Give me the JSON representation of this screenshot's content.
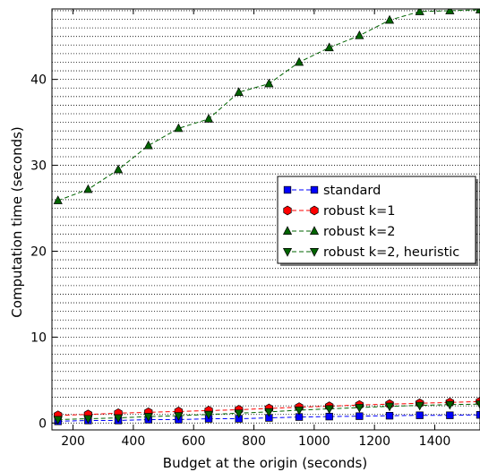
{
  "chart_data": {
    "type": "line",
    "xlabel": "Budget at the origin (seconds)",
    "ylabel": "Computation time (seconds)",
    "xlim": [
      130,
      1550
    ],
    "ylim": [
      -0.8,
      48.2
    ],
    "xticks": [
      200,
      400,
      600,
      800,
      1000,
      1200,
      1400
    ],
    "yticks": [
      0,
      10,
      20,
      30,
      40
    ],
    "grid": "horizontal dotted",
    "legend_position": "center-right",
    "x": [
      150,
      250,
      350,
      450,
      550,
      650,
      750,
      850,
      950,
      1050,
      1150,
      1250,
      1350,
      1450,
      1550
    ],
    "series": [
      {
        "name": "standard",
        "color": "#0000ff",
        "marker": "square",
        "values": [
          0.2,
          0.3,
          0.3,
          0.4,
          0.4,
          0.5,
          0.5,
          0.6,
          0.7,
          0.75,
          0.8,
          0.85,
          0.9,
          0.9,
          0.95
        ]
      },
      {
        "name": "robust k=1",
        "color": "#ff0000",
        "marker": "hexagon",
        "values": [
          0.9,
          1.0,
          1.15,
          1.25,
          1.35,
          1.45,
          1.55,
          1.7,
          1.85,
          1.95,
          2.1,
          2.2,
          2.3,
          2.4,
          2.5
        ]
      },
      {
        "name": "robust k=2",
        "color": "#006400",
        "marker": "triangle-up",
        "values": [
          25.9,
          27.2,
          29.5,
          32.3,
          34.3,
          35.4,
          38.5,
          39.5,
          42.0,
          43.7,
          45.1,
          46.9,
          47.9,
          48.0,
          48.1
        ]
      },
      {
        "name": "robust k=2, heuristic",
        "color": "#006400",
        "marker": "triangle-down",
        "values": [
          0.4,
          0.5,
          0.6,
          0.75,
          0.85,
          1.0,
          1.15,
          1.3,
          1.5,
          1.65,
          1.8,
          1.95,
          2.05,
          2.15,
          2.2
        ]
      }
    ]
  }
}
